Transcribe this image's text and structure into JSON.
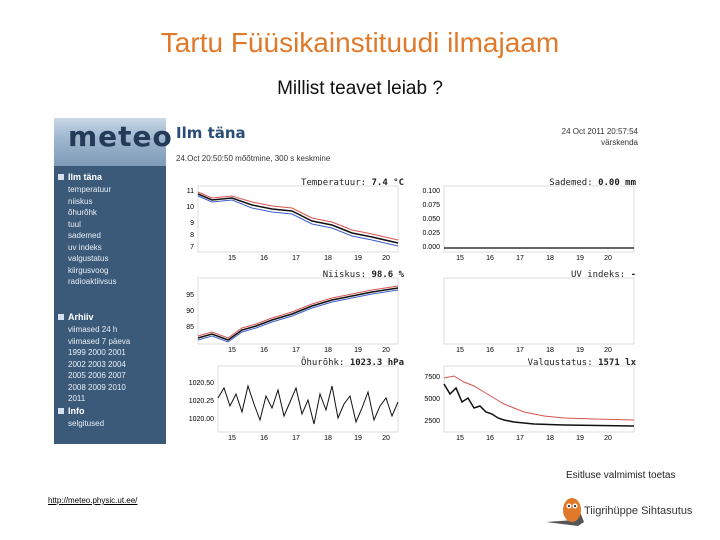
{
  "slide": {
    "title": "Tartu Füüsikainstituudi ilmajaam",
    "subtitle": "Millist teavet leiab ?"
  },
  "screenshot": {
    "logo_text": "meteo",
    "page_title": "Ilm täna",
    "page_sub": "24.Oct 20:50:50 mõõtmine, 300 s keskmine",
    "stamp_date": "24 Oct 2011 20:57:54",
    "stamp_refresh": "värskenda",
    "sidebar": [
      {
        "head": "Ilm täna",
        "items": [
          "temperatuur",
          "niiskus",
          "õhurõhk",
          "tuul",
          "sademed",
          "uv indeks",
          "valgustatus",
          "kiirgusvoog",
          "radioaktiivsus"
        ]
      },
      {
        "head": "Arhiiv",
        "items": [
          "viimased 24 h",
          "viimased 7 päeva",
          "1999 2000 2001",
          "2002 2003 2004",
          "2005 2006 2007",
          "2008 2009 2010",
          "2011"
        ]
      },
      {
        "head": "Info",
        "items": [
          "selgitused"
        ]
      }
    ],
    "panels": [
      {
        "key": "temp",
        "label": "Temperatuur:",
        "value": "7.4 °C"
      },
      {
        "key": "rain",
        "label": "Sademed:",
        "value": "0.00 mm"
      },
      {
        "key": "hum",
        "label": "Niiskus:",
        "value": "98.6 %"
      },
      {
        "key": "uv",
        "label": "UV indeks:",
        "value": "-"
      },
      {
        "key": "press",
        "label": "Õhurõhk:",
        "value": "1023.3 hPa"
      },
      {
        "key": "light",
        "label": "Valgustatus:",
        "value": "1571 lx"
      }
    ],
    "x_ticks": [
      "15",
      "16",
      "17",
      "18",
      "19",
      "20"
    ],
    "y_ticks": {
      "temp": [
        "11",
        "10",
        "9",
        "8",
        "7"
      ],
      "rain": [
        "0.100",
        "0.075",
        "0.050",
        "0.025",
        "0.000"
      ],
      "hum": [
        "95",
        "90",
        "85"
      ],
      "press": [
        "1020.50",
        "1020.25",
        "1020.00"
      ],
      "light": [
        "7500",
        "5000",
        "2500"
      ]
    }
  },
  "footer": {
    "url": "http://meteo.physic.ut.ee/",
    "sponsor_text": "Esitluse valmimist toetas",
    "sponsor_name": "Tiigrihüppe Sihtasutus"
  },
  "colors": {
    "title": "#e07a2a",
    "sidebar": "#3b5a7a",
    "page_title": "#2a4e78",
    "line_red": "#d9534f",
    "line_blue": "#3a5fcd"
  }
}
